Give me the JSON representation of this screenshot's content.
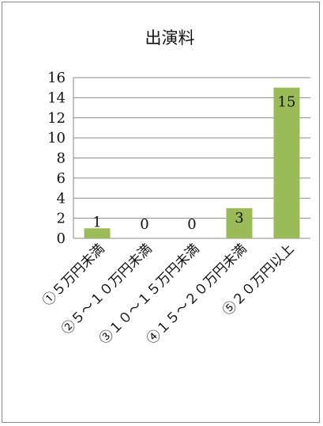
{
  "chart_data": {
    "type": "bar",
    "title": "出演料",
    "xlabel": "",
    "ylabel": "",
    "categories": [
      "①５万円未満",
      "②５～１０万円未満",
      "③１０～１５万円未満",
      "④１５～２０万円未満",
      "⑤２０万円以上"
    ],
    "values": [
      1,
      0,
      0,
      3,
      15
    ],
    "data_labels": [
      "1",
      "0",
      "0",
      "3",
      "15"
    ],
    "ylim": [
      0,
      16
    ],
    "yticks": [
      0,
      2,
      4,
      6,
      8,
      10,
      12,
      14,
      16
    ],
    "grid": true,
    "legend": "none",
    "bar_color": "#9bbb59",
    "grid_color": "#8a8a8a"
  }
}
